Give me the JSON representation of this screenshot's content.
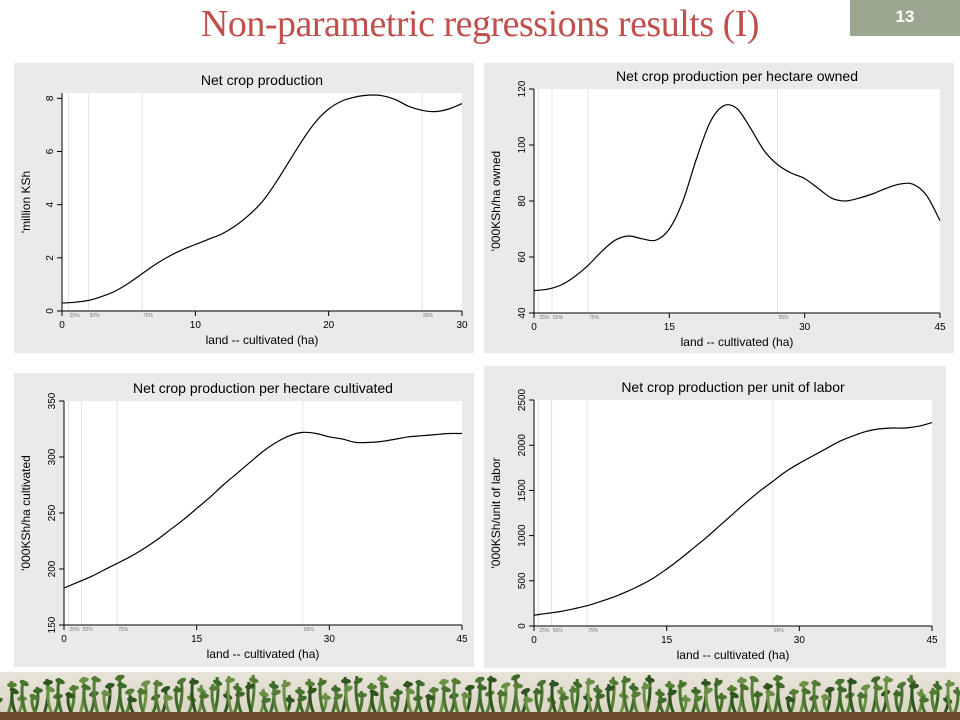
{
  "slide": {
    "title": "Non-parametric regressions results (I)",
    "number": "13"
  },
  "chart_data": [
    {
      "type": "line",
      "title": "Net crop production",
      "xlabel": "land -- cultivated (ha)",
      "ylabel": "'million KSh",
      "xlim": [
        0,
        30
      ],
      "ylim": [
        0,
        8.2
      ],
      "xticks": [
        0,
        10,
        20,
        30
      ],
      "yticks": [
        0,
        2,
        4,
        6,
        8
      ],
      "percentile_lines": [
        {
          "x": 0.5,
          "label": "25%"
        },
        {
          "x": 2,
          "label": "50%"
        },
        {
          "x": 6,
          "label": "75%"
        },
        {
          "x": 27,
          "label": "95%"
        }
      ],
      "grid": false,
      "x": [
        0,
        1,
        2,
        3,
        4,
        5,
        6,
        7,
        8,
        9,
        10,
        11,
        12,
        13,
        14,
        15,
        16,
        17,
        18,
        19,
        20,
        21,
        22,
        23,
        24,
        25,
        26,
        27,
        28,
        29,
        30
      ],
      "y": [
        0.3,
        0.33,
        0.4,
        0.55,
        0.75,
        1.05,
        1.4,
        1.75,
        2.05,
        2.3,
        2.5,
        2.7,
        2.9,
        3.2,
        3.6,
        4.1,
        4.8,
        5.6,
        6.4,
        7.1,
        7.6,
        7.9,
        8.05,
        8.12,
        8.1,
        7.95,
        7.7,
        7.55,
        7.5,
        7.6,
        7.8
      ]
    },
    {
      "type": "line",
      "title": "Net crop production per hectare owned",
      "xlabel": "land -- cultivated (ha)",
      "ylabel": "'000KSh/ha owned",
      "xlim": [
        0,
        45
      ],
      "ylim": [
        40,
        120
      ],
      "xticks": [
        0,
        15,
        30,
        45
      ],
      "yticks": [
        40,
        60,
        80,
        100,
        120
      ],
      "percentile_lines": [
        {
          "x": 0.5,
          "label": "25%"
        },
        {
          "x": 2,
          "label": "50%"
        },
        {
          "x": 6,
          "label": "75%"
        },
        {
          "x": 27,
          "label": "95%"
        }
      ],
      "grid": false,
      "x": [
        0,
        1.5,
        3,
        4.5,
        6,
        7.5,
        9,
        10.5,
        12,
        13.5,
        15,
        16.5,
        18,
        19.5,
        21,
        22.5,
        24,
        25.5,
        27,
        28.5,
        30,
        31.5,
        33,
        34.5,
        36,
        37.5,
        39,
        40.5,
        42,
        43.5,
        45
      ],
      "y": [
        48,
        48.5,
        50,
        53,
        57,
        62,
        66,
        67.5,
        66.5,
        66,
        70,
        80,
        95,
        108,
        114,
        113,
        106,
        98,
        93,
        90,
        88,
        84.5,
        81,
        80,
        81,
        82.5,
        84.5,
        86,
        86,
        82,
        73
      ]
    },
    {
      "type": "line",
      "title": "Net crop production per hectare cultivated",
      "xlabel": "land -- cultivated (ha)",
      "ylabel": "'000KSh/ha cultivated",
      "xlim": [
        0,
        45
      ],
      "ylim": [
        150,
        350
      ],
      "xticks": [
        0,
        15,
        30,
        45
      ],
      "yticks": [
        150,
        200,
        250,
        300,
        350
      ],
      "percentile_lines": [
        {
          "x": 0.5,
          "label": "25%"
        },
        {
          "x": 2,
          "label": "50%"
        },
        {
          "x": 6,
          "label": "75%"
        },
        {
          "x": 27,
          "label": "95%"
        }
      ],
      "grid": false,
      "x": [
        0,
        1.5,
        3,
        4.5,
        6,
        7.5,
        9,
        10.5,
        12,
        13.5,
        15,
        16.5,
        18,
        19.5,
        21,
        22.5,
        24,
        25.5,
        27,
        28.5,
        30,
        31.5,
        33,
        34.5,
        36,
        37.5,
        39,
        40.5,
        42,
        43.5,
        45
      ],
      "y": [
        183,
        188,
        193,
        199,
        205,
        211,
        218,
        226,
        235,
        244,
        254,
        264,
        275,
        285,
        295,
        305,
        313,
        319,
        322,
        321,
        318,
        316,
        313,
        313,
        314,
        316,
        318,
        319,
        320,
        321,
        321
      ]
    },
    {
      "type": "line",
      "title": "Net crop production per unit of labor",
      "xlabel": "land -- cultivated (ha)",
      "ylabel": "'000KSh/unit of labor",
      "xlim": [
        0,
        45
      ],
      "ylim": [
        0,
        2500
      ],
      "xticks": [
        0,
        15,
        30,
        45
      ],
      "yticks": [
        0,
        500,
        1000,
        1500,
        2000,
        2500
      ],
      "percentile_lines": [
        {
          "x": 0.5,
          "label": "25%"
        },
        {
          "x": 2,
          "label": "50%"
        },
        {
          "x": 6,
          "label": "75%"
        },
        {
          "x": 27,
          "label": "95%"
        }
      ],
      "grid": false,
      "x": [
        0,
        1.5,
        3,
        4.5,
        6,
        7.5,
        9,
        10.5,
        12,
        13.5,
        15,
        16.5,
        18,
        19.5,
        21,
        22.5,
        24,
        25.5,
        27,
        28.5,
        30,
        31.5,
        33,
        34.5,
        36,
        37.5,
        39,
        40.5,
        42,
        43.5,
        45
      ],
      "y": [
        120,
        140,
        160,
        190,
        225,
        270,
        320,
        380,
        450,
        530,
        630,
        740,
        860,
        980,
        1110,
        1240,
        1370,
        1490,
        1600,
        1710,
        1800,
        1880,
        1960,
        2040,
        2100,
        2150,
        2180,
        2190,
        2190,
        2210,
        2250
      ]
    }
  ]
}
